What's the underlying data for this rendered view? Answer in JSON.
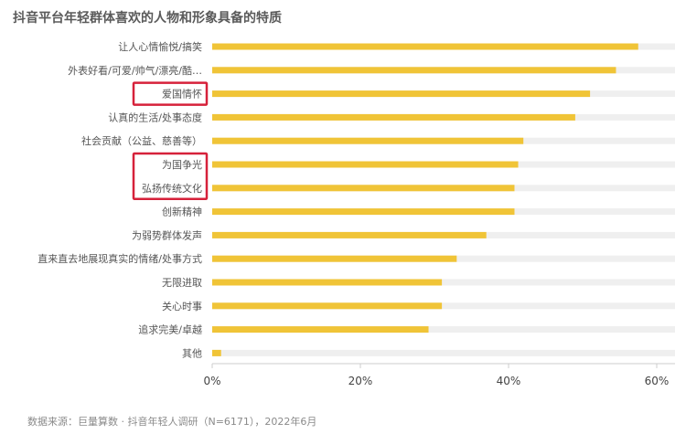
{
  "title": "抖音平台年轻群体喜欢的人物和形象具备的特质",
  "source_note": "数据来源：巨量算数 · 抖音年轻人调研（N=6171），2022年6月",
  "colors": {
    "bar": "#f0c437",
    "track": "#efefef",
    "highlight": "#d6213a",
    "label": "#555555",
    "tick": "#444444",
    "axis": "#cccccc"
  },
  "chart_data": {
    "type": "bar",
    "orientation": "horizontal",
    "title": "抖音平台年轻群体喜欢的人物和形象具备的特质",
    "xlabel": "",
    "ylabel": "",
    "xlim": [
      0,
      60
    ],
    "tick_values": [
      0,
      20,
      40,
      60
    ],
    "tick_labels": [
      "0%",
      "20%",
      "40%",
      "60%"
    ],
    "categories": [
      "让人心情愉悦/搞笑",
      "外表好看/可爱/帅气/漂亮/酷…",
      "爱国情怀",
      "认真的生活/处事态度",
      "社会贡献（公益、慈善等）",
      "为国争光",
      "弘扬传统文化",
      "创新精神",
      "为弱势群体发声",
      "直来直去地展现真实的情绪/处事方式",
      "无限进取",
      "关心时事",
      "追求完美/卓越",
      "其他"
    ],
    "values": [
      57.5,
      54.5,
      51,
      49,
      42,
      41.3,
      40.8,
      40.8,
      37,
      33,
      31,
      31,
      29.2,
      1.2
    ],
    "highlighted": [
      "爱国情怀",
      "为国争光",
      "弘扬传统文化"
    ],
    "grid": false,
    "legend": "none"
  }
}
